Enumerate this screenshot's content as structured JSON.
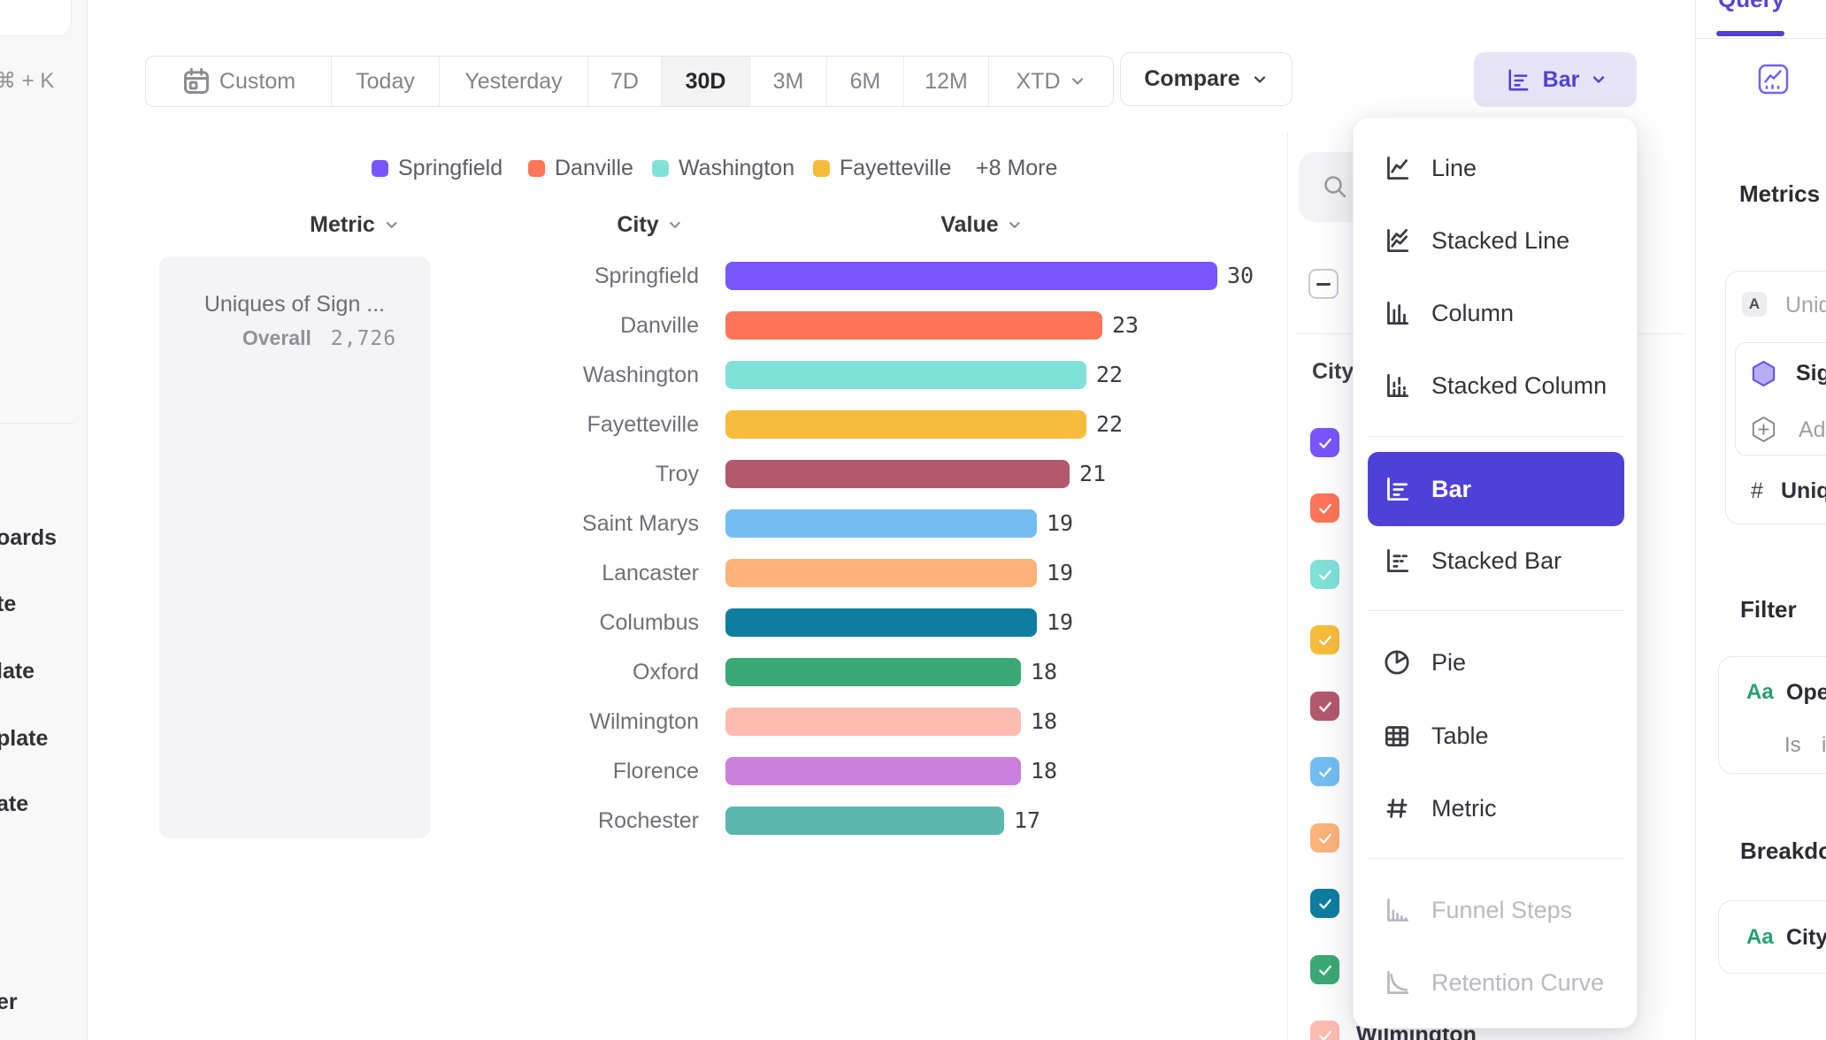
{
  "colors": {
    "accent_purple": "#4f41d8",
    "bar_button_bg": "#e7e4fa",
    "selected_segment_bg": "#f3f3f4",
    "panel_border": "#e9e9ec",
    "green_badge": "#27a06e",
    "palette": [
      "#7856FF",
      "#FF7557",
      "#80E1D9",
      "#F8BC3C",
      "#B2596E",
      "#72BEF4",
      "#FFB27A",
      "#0D7EA0",
      "#3BA974",
      "#FEBBB2",
      "#CA80DC",
      "#5BB7AF"
    ]
  },
  "sidebar": {
    "shortcut_hint": "⌘ + K",
    "clipped_items": [
      "oards",
      "te",
      "late",
      "plate",
      "ate",
      "er"
    ]
  },
  "toolbar": {
    "date_ranges": [
      "Custom",
      "Today",
      "Yesterday",
      "7D",
      "30D",
      "3M",
      "6M",
      "12M",
      "XTD"
    ],
    "selected_range": "30D",
    "compare_label": "Compare",
    "chart_type_label": "Bar"
  },
  "chart_data": {
    "type": "bar",
    "orientation": "horizontal",
    "title": "Uniques of Sign ...",
    "overall_label": "Overall",
    "overall_value": "2,726",
    "column_headers": [
      "Metric",
      "City",
      "Value"
    ],
    "categories": [
      "Springfield",
      "Danville",
      "Washington",
      "Fayetteville",
      "Troy",
      "Saint Marys",
      "Lancaster",
      "Columbus",
      "Oxford",
      "Wilmington",
      "Florence",
      "Rochester"
    ],
    "values": [
      30,
      23,
      22,
      22,
      21,
      19,
      19,
      19,
      18,
      18,
      18,
      17
    ],
    "series_colors": [
      "#7856FF",
      "#FF7557",
      "#80E1D9",
      "#F8BC3C",
      "#B2596E",
      "#72BEF4",
      "#FFB27A",
      "#0D7EA0",
      "#3BA974",
      "#FEBBB2",
      "#CA80DC",
      "#5BB7AF"
    ],
    "xlim": [
      0,
      30
    ],
    "legend": {
      "items": [
        {
          "label": "Springfield",
          "color": "#7856FF"
        },
        {
          "label": "Danville",
          "color": "#FF7557"
        },
        {
          "label": "Washington",
          "color": "#80E1D9"
        },
        {
          "label": "Fayetteville",
          "color": "#F8BC3C"
        }
      ],
      "more_label": "+8 More"
    }
  },
  "series_panel": {
    "column_header": "City",
    "select_all_state": "indeterminate",
    "rows": [
      {
        "label": "Springfield",
        "color": "#7856FF",
        "checked": true
      },
      {
        "label": "Danville",
        "color": "#FF7557",
        "checked": true
      },
      {
        "label": "Washington",
        "color": "#80E1D9",
        "checked": true
      },
      {
        "label": "Fayetteville",
        "color": "#F8BC3C",
        "checked": true
      },
      {
        "label": "Troy",
        "color": "#B2596E",
        "checked": true
      },
      {
        "label": "Saint Marys",
        "color": "#72BEF4",
        "checked": true
      },
      {
        "label": "Lancaster",
        "color": "#FFB27A",
        "checked": true
      },
      {
        "label": "Columbus",
        "color": "#0D7EA0",
        "checked": true
      },
      {
        "label": "Oxford",
        "color": "#3BA974",
        "checked": true
      },
      {
        "label": "Wilmington",
        "color": "#FEBBB2",
        "checked": true
      }
    ]
  },
  "chart_type_menu": {
    "selected": "Bar",
    "items": [
      {
        "label": "Line",
        "icon": "line-chart-icon",
        "group": 1
      },
      {
        "label": "Stacked Line",
        "icon": "stacked-line-chart-icon",
        "group": 1
      },
      {
        "label": "Column",
        "icon": "column-chart-icon",
        "group": 1
      },
      {
        "label": "Stacked Column",
        "icon": "stacked-column-chart-icon",
        "group": 1
      },
      {
        "label": "Bar",
        "icon": "bar-chart-icon",
        "group": 2,
        "selected": true
      },
      {
        "label": "Stacked Bar",
        "icon": "stacked-bar-chart-icon",
        "group": 2
      },
      {
        "label": "Pie",
        "icon": "pie-chart-icon",
        "group": 3
      },
      {
        "label": "Table",
        "icon": "table-icon",
        "group": 3
      },
      {
        "label": "Metric",
        "icon": "metric-icon",
        "group": 3
      },
      {
        "label": "Funnel Steps",
        "icon": "funnel-steps-icon",
        "group": 4,
        "disabled": true
      },
      {
        "label": "Retention Curve",
        "icon": "retention-curve-icon",
        "group": 4,
        "disabled": true
      }
    ]
  },
  "query_panel": {
    "tab": "Query",
    "metrics_heading": "Metrics",
    "all_selector_badge": "A",
    "all_selector_label": "Uniques",
    "event_name": "Sign",
    "add_label": "Add",
    "count_hash": "#",
    "count_label": "Unique Us",
    "filter_heading": "Filter",
    "filter_badge": "Aa",
    "filter_property": "Operating",
    "filter_operator": "Is",
    "filter_value": "iO",
    "breakdown_heading": "Breakdown",
    "breakdown_badge": "Aa",
    "breakdown_property": "City"
  }
}
